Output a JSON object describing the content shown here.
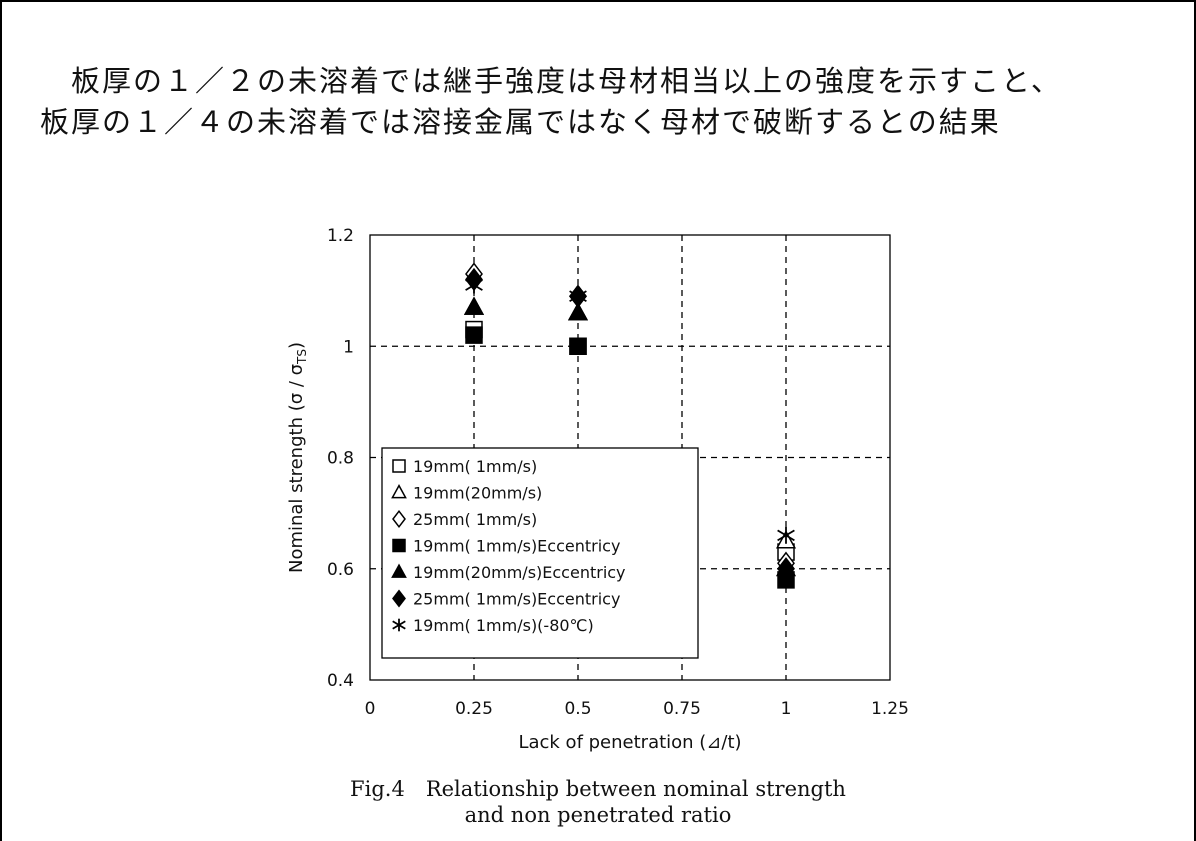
{
  "slide": {
    "headline_line1": "　板厚の１／２の未溶着では継手強度は母材相当以上の強度を示すこと、",
    "headline_line2": "板厚の１／４の未溶着では溶接金属ではなく母材で破断するとの結果",
    "caption_line1": "Fig.4　Relationship between nominal strength",
    "caption_line2": "and non penetrated ratio"
  },
  "chart_data": {
    "type": "scatter",
    "title": "",
    "xlabel": "Lack of penetration (⊿/t)",
    "ylabel": "Nominal strength (σ / σ",
    "ylabel_sub": "TS",
    "ylabel_end": ")",
    "xlim": [
      0,
      1.25
    ],
    "ylim": [
      0.4,
      1.2
    ],
    "xticks": [
      0,
      0.25,
      0.5,
      0.75,
      1,
      1.25
    ],
    "xtick_labels": [
      "0",
      "0.25",
      "0.5",
      "0.75",
      "1",
      "1.25"
    ],
    "yticks": [
      0.4,
      0.6,
      0.8,
      1,
      1.2
    ],
    "ytick_labels": [
      "0.4",
      "0.6",
      "0.8",
      "1",
      "1.2"
    ],
    "grid": true,
    "legend_position": "bottom-left",
    "series": [
      {
        "name": "19mm( 1mm/s)",
        "marker": "square-open",
        "x": [
          0.25,
          0.5,
          1
        ],
        "y": [
          1.03,
          1.0,
          0.63
        ]
      },
      {
        "name": "19mm(20mm/s)",
        "marker": "triangle-open",
        "x": [
          0.25,
          0.5,
          1
        ],
        "y": [
          1.07,
          1.06,
          0.65
        ]
      },
      {
        "name": "25mm( 1mm/s)",
        "marker": "diamond-open",
        "x": [
          0.25,
          0.5,
          1
        ],
        "y": [
          1.13,
          1.09,
          0.61
        ]
      },
      {
        "name": "19mm( 1mm/s)Eccentricy",
        "marker": "square-filled",
        "x": [
          0.25,
          0.5,
          1
        ],
        "y": [
          1.02,
          1.0,
          0.58
        ]
      },
      {
        "name": "19mm(20mm/s)Eccentricy",
        "marker": "triangle-filled",
        "x": [
          0.25,
          0.5,
          1
        ],
        "y": [
          1.07,
          1.06,
          0.6
        ]
      },
      {
        "name": "25mm( 1mm/s)Eccentricy",
        "marker": "diamond-filled",
        "x": [
          0.25,
          0.5,
          1
        ],
        "y": [
          1.12,
          1.09,
          0.6
        ]
      },
      {
        "name": "19mm( 1mm/s)(-80℃)",
        "marker": "asterisk",
        "x": [
          0.25,
          0.5,
          1
        ],
        "y": [
          1.11,
          1.09,
          0.66
        ]
      }
    ]
  }
}
